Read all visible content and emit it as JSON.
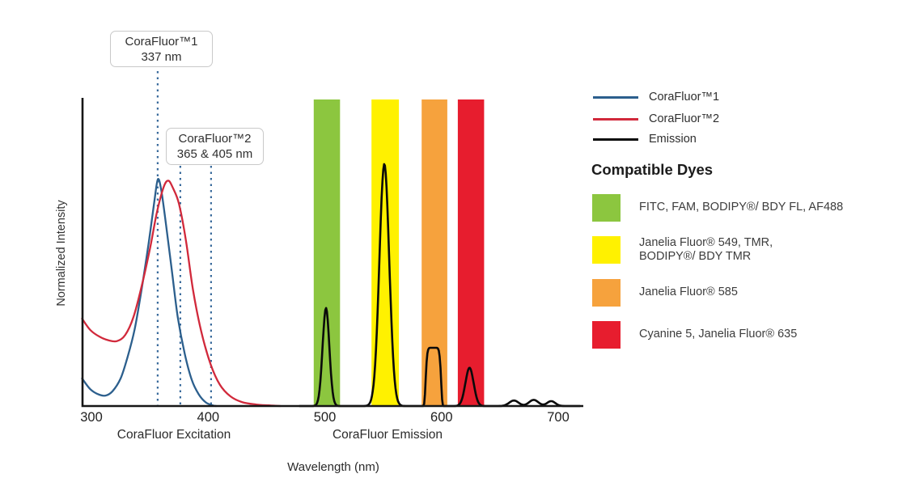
{
  "chart_data": {
    "type": "line",
    "x_axis_label": "Wavelength (nm)",
    "y_axis_label": "Normalized Intensity",
    "x_ticks": [
      300,
      400,
      500,
      600,
      700
    ],
    "xlim": [
      292,
      722
    ],
    "ylim": [
      0,
      1
    ],
    "grid": false,
    "x_section_labels": [
      {
        "text": "CoraFluor Excitation",
        "center_nm": 370.7
      },
      {
        "text": "CoraFluor Emission",
        "center_nm": 553.7
      }
    ],
    "annotation_line_color": "#3A6B9C",
    "annotations": [
      {
        "title": "CoraFluor™1",
        "subtitle": "337 nm",
        "lines_nm": [
          356.8
        ]
      },
      {
        "title": "CoraFluor™2",
        "subtitle": "365 & 405 nm",
        "lines_nm": [
          376.2,
          402.5
        ]
      }
    ],
    "bands": [
      {
        "name": "green-band",
        "color": "#8CC63F",
        "range_nm": [
          490.5,
          513.0
        ],
        "dyes": "FITC, FAM, BODIPY®/ BDY FL, AF488"
      },
      {
        "name": "yellow-band",
        "color": "#FFF100",
        "range_nm": [
          540.0,
          563.5
        ],
        "dyes": "Janelia Fluor® 549, TMR, BODIPY®/ BDY TMR"
      },
      {
        "name": "orange-band",
        "color": "#F6A23D",
        "range_nm": [
          583.0,
          605.0
        ],
        "dyes": "Janelia Fluor® 585"
      },
      {
        "name": "red-band",
        "color": "#E71D2E",
        "range_nm": [
          614.0,
          636.5
        ],
        "dyes": "Cyanine 5, Janelia Fluor® 635"
      }
    ],
    "series": [
      {
        "key": "corafluor1-excitation",
        "name": "CoraFluor™1",
        "color": "#2C5F8D",
        "kind": "excitation",
        "points": [
          [
            292,
            0.09
          ],
          [
            299,
            0.055
          ],
          [
            306,
            0.038
          ],
          [
            312,
            0.034
          ],
          [
            318,
            0.048
          ],
          [
            325,
            0.09
          ],
          [
            331,
            0.16
          ],
          [
            337,
            0.25
          ],
          [
            343,
            0.38
          ],
          [
            349,
            0.53
          ],
          [
            354,
            0.67
          ],
          [
            357,
            0.74
          ],
          [
            360,
            0.7
          ],
          [
            364,
            0.59
          ],
          [
            369,
            0.44
          ],
          [
            374,
            0.29
          ],
          [
            380,
            0.17
          ],
          [
            386,
            0.085
          ],
          [
            392,
            0.038
          ],
          [
            398,
            0.012
          ],
          [
            404,
            0.002
          ],
          [
            407,
            0
          ]
        ]
      },
      {
        "key": "corafluor2-excitation",
        "name": "CoraFluor™2",
        "color": "#D1293B",
        "kind": "excitation",
        "points": [
          [
            292,
            0.285
          ],
          [
            299,
            0.248
          ],
          [
            307,
            0.226
          ],
          [
            315,
            0.214
          ],
          [
            322,
            0.212
          ],
          [
            329,
            0.232
          ],
          [
            336,
            0.29
          ],
          [
            343,
            0.39
          ],
          [
            350,
            0.51
          ],
          [
            356,
            0.63
          ],
          [
            362,
            0.715
          ],
          [
            366,
            0.735
          ],
          [
            370,
            0.71
          ],
          [
            375,
            0.66
          ],
          [
            381,
            0.54
          ],
          [
            387,
            0.38
          ],
          [
            394,
            0.245
          ],
          [
            402,
            0.138
          ],
          [
            410,
            0.07
          ],
          [
            419,
            0.032
          ],
          [
            429,
            0.013
          ],
          [
            441,
            0.005
          ],
          [
            452,
            0.002
          ],
          [
            462,
            0
          ]
        ]
      },
      {
        "key": "emission",
        "name": "Emission",
        "color": "#0A0A0A",
        "kind": "emission-peaks",
        "domain_nm": [
          478,
          719
        ],
        "peaks": [
          {
            "shape": "gaussian",
            "center_nm": 501,
            "sigma_nm": 2.9,
            "height": 0.32
          },
          {
            "shape": "gaussian",
            "center_nm": 551,
            "sigma_nm": 4.2,
            "height": 0.79
          },
          {
            "shape": "flat-top",
            "center_nm": 593,
            "width_nm": 6.8,
            "power": 8,
            "height": 0.19
          },
          {
            "shape": "gaussian",
            "center_nm": 624,
            "sigma_nm": 3.5,
            "height": 0.125
          },
          {
            "shape": "gaussian",
            "center_nm": 662,
            "sigma_nm": 4.0,
            "height": 0.018
          },
          {
            "shape": "gaussian",
            "center_nm": 679,
            "sigma_nm": 4.0,
            "height": 0.02
          },
          {
            "shape": "gaussian",
            "center_nm": 694,
            "sigma_nm": 3.5,
            "height": 0.016
          }
        ]
      }
    ]
  },
  "legend": {
    "items": [
      {
        "label": "CoraFluor™1",
        "color": "#2C5F8D"
      },
      {
        "label": "CoraFluor™2",
        "color": "#D1293B"
      },
      {
        "label": "Emission",
        "color": "#0A0A0A"
      }
    ]
  },
  "compatible_dyes": {
    "heading": "Compatible Dyes",
    "items": [
      {
        "color": "#8CC63F",
        "line1": "FITC, FAM, BODIPY®/ BDY FL, AF488"
      },
      {
        "color": "#FFF100",
        "line1": "Janelia Fluor® 549, TMR,",
        "line2": "BODIPY®/ BDY TMR"
      },
      {
        "color": "#F6A23D",
        "line1": "Janelia Fluor® 585"
      },
      {
        "color": "#E71D2E",
        "line1": "Cyanine 5, Janelia Fluor® 635"
      }
    ]
  }
}
